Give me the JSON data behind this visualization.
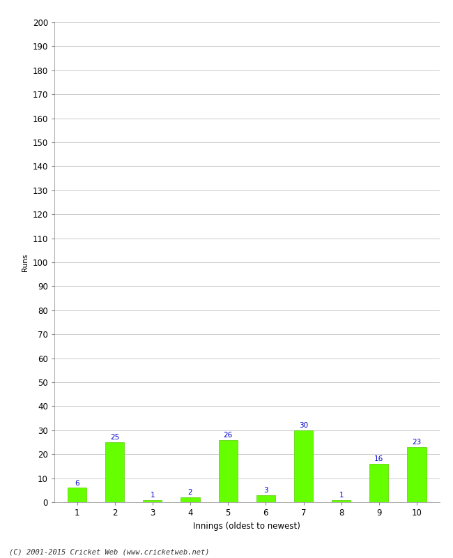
{
  "xlabel": "Innings (oldest to newest)",
  "ylabel": "Runs",
  "categories": [
    "1",
    "2",
    "3",
    "4",
    "5",
    "6",
    "7",
    "8",
    "9",
    "10"
  ],
  "values": [
    6,
    25,
    1,
    2,
    26,
    3,
    30,
    1,
    16,
    23
  ],
  "bar_color": "#66ff00",
  "bar_edge_color": "#55cc00",
  "label_color": "#0000cc",
  "ylim": [
    0,
    200
  ],
  "yticks": [
    0,
    10,
    20,
    30,
    40,
    50,
    60,
    70,
    80,
    90,
    100,
    110,
    120,
    130,
    140,
    150,
    160,
    170,
    180,
    190,
    200
  ],
  "background_color": "#ffffff",
  "grid_color": "#cccccc",
  "footer": "(C) 2001-2015 Cricket Web (www.cricketweb.net)",
  "label_fontsize": 7.5,
  "axis_fontsize": 8.5,
  "ylabel_fontsize": 7.5,
  "xlabel_fontsize": 8.5,
  "bar_width": 0.5
}
